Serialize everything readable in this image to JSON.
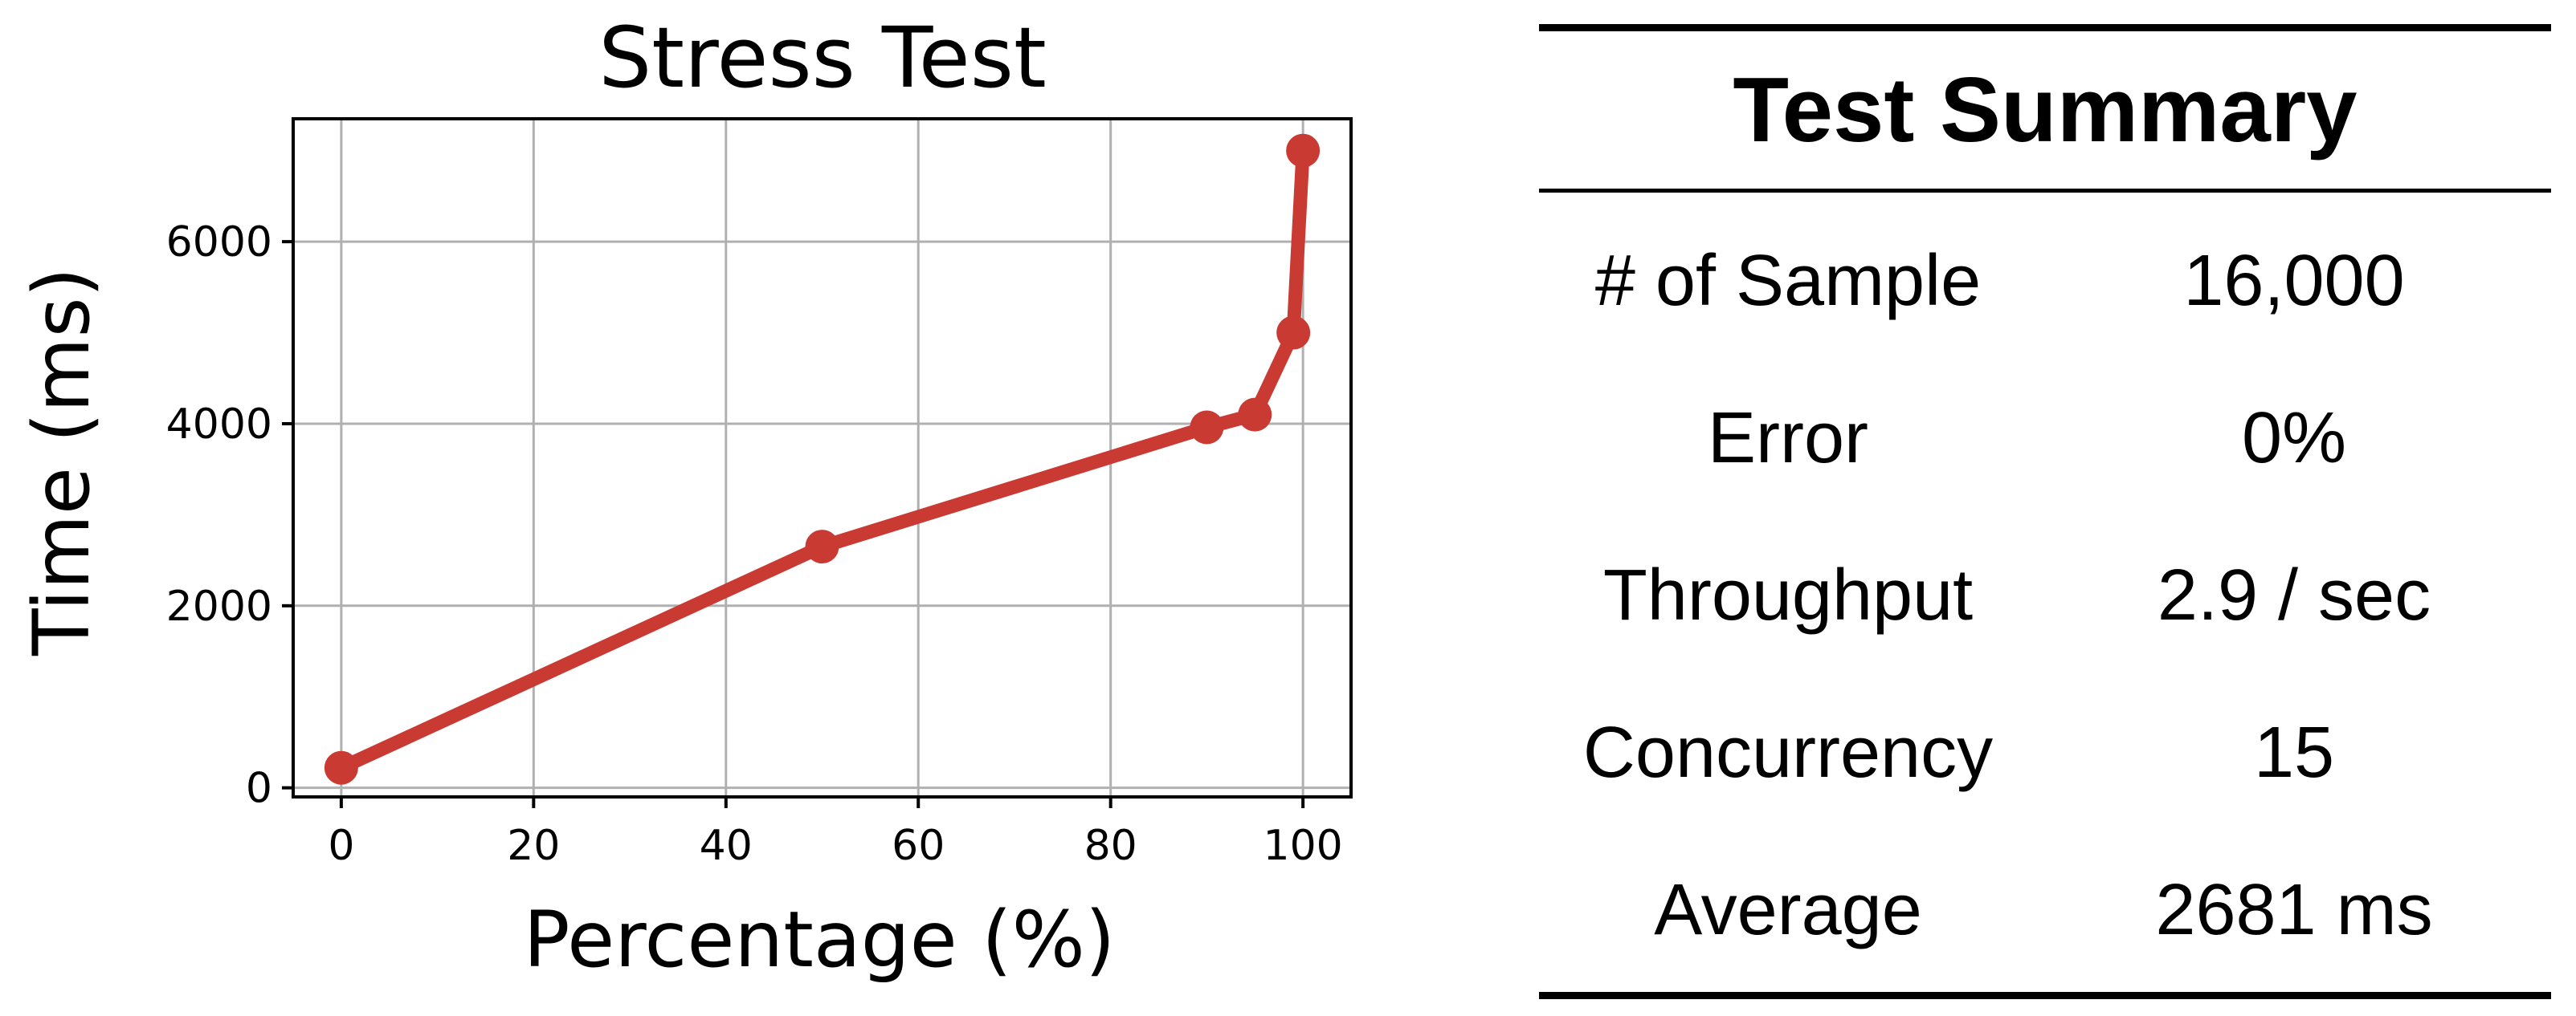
{
  "chart_data": {
    "type": "line",
    "title": "Stress Test",
    "xlabel": "Percentage (%)",
    "ylabel": "Time (ms)",
    "xlim": [
      -5,
      105
    ],
    "ylim": [
      -100,
      7350
    ],
    "x_ticks": [
      0,
      20,
      40,
      60,
      80,
      100
    ],
    "y_ticks": [
      0,
      2000,
      4000,
      6000
    ],
    "grid": true,
    "series": [
      {
        "x": [
          0,
          50,
          90,
          95,
          99,
          100
        ],
        "y": [
          220,
          2650,
          3960,
          4100,
          5000,
          7000
        ],
        "color": "#c93a33",
        "marker": "circle"
      }
    ]
  },
  "summary": {
    "title": "Test Summary",
    "rows": [
      {
        "label": "# of Sample",
        "value": "16,000"
      },
      {
        "label": "Error",
        "value": "0%"
      },
      {
        "label": "Throughput",
        "value": "2.9 / sec"
      },
      {
        "label": "Concurrency",
        "value": "15"
      },
      {
        "label": "Average",
        "value": "2681 ms"
      }
    ]
  }
}
